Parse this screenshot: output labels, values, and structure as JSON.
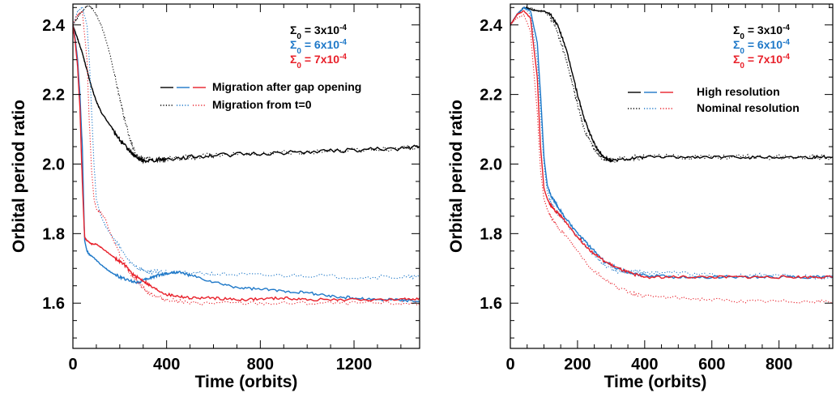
{
  "colors": {
    "black": "#000000",
    "blue": "#1e78c8",
    "red": "#e8202a"
  },
  "chart_data": [
    {
      "type": "line",
      "xlabel": "Time (orbits)",
      "ylabel": "Orbital period ratio",
      "xlim": [
        0,
        1480
      ],
      "ylim": [
        1.47,
        2.46
      ],
      "xticks": [
        0,
        400,
        800,
        1200
      ],
      "xtick_labels": [
        "0",
        "400",
        "800",
        "1200"
      ],
      "yticks": [
        1.6,
        1.8,
        2.0,
        2.2,
        2.4
      ],
      "ytick_labels": [
        "1.6",
        "1.8",
        "2.0",
        "2.2",
        "2.4"
      ],
      "grid": false,
      "legend_placement": "top-right",
      "sigma_legend": [
        {
          "label": "Σ0 = 3x10-4",
          "pre": "Σ",
          "sub": "0",
          "mid": " = 3x10",
          "sup": "-4",
          "color": "#000000"
        },
        {
          "label": "Σ0 = 6x10-4",
          "pre": "Σ",
          "sub": "0",
          "mid": " = 6x10",
          "sup": "-4",
          "color": "#1e78c8"
        },
        {
          "label": "Σ0 = 7x10-4",
          "pre": "Σ",
          "sub": "0",
          "mid": " = 7x10",
          "sup": "-4",
          "color": "#e8202a"
        }
      ],
      "style_legend": [
        {
          "label": "Migration after gap opening",
          "dash": "solid"
        },
        {
          "label": "Migration from t=0",
          "dash": "dotted"
        }
      ],
      "series": [
        {
          "color": "#000000",
          "dash": "solid",
          "noise": 0.006,
          "x": [
            0,
            20,
            40,
            60,
            80,
            100,
            120,
            150,
            180,
            210,
            240,
            260,
            280,
            300,
            350,
            400,
            500,
            600,
            800,
            1000,
            1200,
            1400,
            1480
          ],
          "y": [
            2.4,
            2.36,
            2.32,
            2.27,
            2.22,
            2.18,
            2.15,
            2.12,
            2.09,
            2.06,
            2.04,
            2.025,
            2.015,
            2.01,
            2.012,
            2.015,
            2.02,
            2.025,
            2.03,
            2.035,
            2.04,
            2.045,
            2.05
          ]
        },
        {
          "color": "#000000",
          "dash": "dotted",
          "noise": 0.008,
          "x": [
            0,
            20,
            40,
            60,
            80,
            100,
            120,
            140,
            160,
            180,
            200,
            220,
            240,
            260,
            280,
            300,
            340,
            400,
            500,
            600,
            800,
            1000,
            1200,
            1400,
            1480
          ],
          "y": [
            2.4,
            2.42,
            2.44,
            2.455,
            2.45,
            2.43,
            2.4,
            2.36,
            2.31,
            2.25,
            2.19,
            2.13,
            2.08,
            2.04,
            2.02,
            2.015,
            2.012,
            2.015,
            2.02,
            2.025,
            2.03,
            2.035,
            2.04,
            2.045,
            2.05
          ]
        },
        {
          "color": "#1e78c8",
          "dash": "solid",
          "noise": 0.004,
          "x": [
            0,
            10,
            20,
            30,
            40,
            50,
            60,
            70,
            90,
            120,
            160,
            200,
            240,
            280,
            320,
            360,
            400,
            450,
            500,
            600,
            700,
            800,
            900,
            1000,
            1100,
            1200,
            1300,
            1400,
            1480
          ],
          "y": [
            2.4,
            2.36,
            2.3,
            2.2,
            2.05,
            1.78,
            1.75,
            1.74,
            1.73,
            1.71,
            1.69,
            1.675,
            1.665,
            1.66,
            1.67,
            1.68,
            1.685,
            1.69,
            1.68,
            1.66,
            1.645,
            1.64,
            1.635,
            1.63,
            1.62,
            1.615,
            1.61,
            1.61,
            1.605
          ]
        },
        {
          "color": "#1e78c8",
          "dash": "dotted",
          "noise": 0.006,
          "x": [
            0,
            20,
            40,
            60,
            70,
            80,
            90,
            100,
            120,
            140,
            160,
            200,
            240,
            280,
            320,
            360,
            400,
            500,
            600,
            800,
            1000,
            1200,
            1400,
            1480
          ],
          "y": [
            2.4,
            2.44,
            2.45,
            2.4,
            2.3,
            2.15,
            2.0,
            1.9,
            1.85,
            1.82,
            1.8,
            1.76,
            1.72,
            1.7,
            1.69,
            1.69,
            1.69,
            1.685,
            1.685,
            1.68,
            1.68,
            1.675,
            1.675,
            1.675
          ]
        },
        {
          "color": "#e8202a",
          "dash": "solid",
          "noise": 0.004,
          "x": [
            0,
            10,
            20,
            30,
            40,
            50,
            60,
            80,
            100,
            140,
            180,
            220,
            260,
            300,
            340,
            400,
            450,
            500,
            600,
            700,
            800,
            900,
            1000,
            1200,
            1400,
            1480
          ],
          "y": [
            2.4,
            2.35,
            2.28,
            2.16,
            1.95,
            1.79,
            1.78,
            1.77,
            1.77,
            1.75,
            1.73,
            1.71,
            1.68,
            1.665,
            1.645,
            1.625,
            1.62,
            1.615,
            1.615,
            1.61,
            1.612,
            1.615,
            1.61,
            1.61,
            1.61,
            1.615
          ]
        },
        {
          "color": "#e8202a",
          "dash": "dotted",
          "noise": 0.006,
          "x": [
            0,
            20,
            40,
            60,
            70,
            80,
            90,
            100,
            120,
            140,
            160,
            200,
            240,
            280,
            320,
            360,
            400,
            500,
            600,
            800,
            1000,
            1200,
            1400,
            1480
          ],
          "y": [
            2.4,
            2.43,
            2.44,
            2.3,
            2.12,
            1.98,
            1.9,
            1.87,
            1.86,
            1.84,
            1.8,
            1.74,
            1.69,
            1.66,
            1.63,
            1.62,
            1.61,
            1.6,
            1.6,
            1.6,
            1.6,
            1.6,
            1.6,
            1.6
          ]
        }
      ]
    },
    {
      "type": "line",
      "xlabel": "Time (orbits)",
      "ylabel": "Orbital period ratio",
      "xlim": [
        0,
        960
      ],
      "ylim": [
        1.47,
        2.46
      ],
      "xticks": [
        0,
        200,
        400,
        600,
        800
      ],
      "xtick_labels": [
        "0",
        "200",
        "400",
        "600",
        "800"
      ],
      "yticks": [
        1.6,
        1.8,
        2.0,
        2.2,
        2.4
      ],
      "ytick_labels": [
        "1.6",
        "1.8",
        "2.0",
        "2.2",
        "2.4"
      ],
      "grid": false,
      "legend_placement": "top-right",
      "sigma_legend": [
        {
          "label": "Σ0 = 3x10-4",
          "pre": "Σ",
          "sub": "0",
          "mid": " = 3x10",
          "sup": "-4",
          "color": "#000000"
        },
        {
          "label": "Σ0 = 6x10-4",
          "pre": "Σ",
          "sub": "0",
          "mid": " = 6x10",
          "sup": "-4",
          "color": "#1e78c8"
        },
        {
          "label": "Σ0 = 7x10-4",
          "pre": "Σ",
          "sub": "0",
          "mid": " = 7x10",
          "sup": "-4",
          "color": "#e8202a"
        }
      ],
      "style_legend": [
        {
          "label": "High resolution",
          "dash": "solid"
        },
        {
          "label": "Nominal resolution",
          "dash": "dotted"
        }
      ],
      "series": [
        {
          "color": "#000000",
          "dash": "solid",
          "noise": 0.004,
          "x": [
            0,
            20,
            40,
            60,
            80,
            100,
            120,
            140,
            160,
            180,
            200,
            220,
            240,
            260,
            280,
            300,
            350,
            400,
            500,
            600,
            700,
            800,
            900,
            960
          ],
          "y": [
            2.4,
            2.43,
            2.45,
            2.445,
            2.44,
            2.44,
            2.43,
            2.4,
            2.35,
            2.28,
            2.2,
            2.13,
            2.08,
            2.04,
            2.02,
            2.01,
            2.015,
            2.02,
            2.02,
            2.02,
            2.02,
            2.02,
            2.02,
            2.02
          ]
        },
        {
          "color": "#000000",
          "dash": "dotted",
          "noise": 0.008,
          "x": [
            0,
            20,
            40,
            60,
            80,
            100,
            120,
            140,
            160,
            180,
            200,
            220,
            240,
            260,
            280,
            300,
            350,
            400,
            500,
            600,
            700,
            800,
            900,
            960
          ],
          "y": [
            2.4,
            2.43,
            2.45,
            2.45,
            2.44,
            2.44,
            2.42,
            2.38,
            2.32,
            2.25,
            2.17,
            2.1,
            2.06,
            2.03,
            2.015,
            2.01,
            2.015,
            2.02,
            2.02,
            2.02,
            2.02,
            2.02,
            2.02,
            2.02
          ]
        },
        {
          "color": "#1e78c8",
          "dash": "solid",
          "noise": 0.004,
          "x": [
            0,
            20,
            40,
            60,
            80,
            90,
            100,
            110,
            120,
            140,
            160,
            200,
            240,
            280,
            320,
            360,
            400,
            500,
            600,
            700,
            800,
            900,
            960
          ],
          "y": [
            2.4,
            2.43,
            2.45,
            2.44,
            2.35,
            2.2,
            2.02,
            1.94,
            1.91,
            1.88,
            1.85,
            1.8,
            1.76,
            1.72,
            1.7,
            1.685,
            1.68,
            1.675,
            1.675,
            1.675,
            1.675,
            1.675,
            1.675
          ]
        },
        {
          "color": "#1e78c8",
          "dash": "dotted",
          "noise": 0.006,
          "x": [
            0,
            20,
            40,
            60,
            80,
            90,
            100,
            110,
            120,
            140,
            160,
            200,
            240,
            280,
            320,
            360,
            400,
            500,
            600,
            700,
            800,
            900,
            960
          ],
          "y": [
            2.4,
            2.43,
            2.45,
            2.43,
            2.3,
            2.15,
            2.0,
            1.92,
            1.89,
            1.86,
            1.84,
            1.79,
            1.75,
            1.71,
            1.69,
            1.69,
            1.69,
            1.685,
            1.68,
            1.68,
            1.68,
            1.675,
            1.675
          ]
        },
        {
          "color": "#e8202a",
          "dash": "solid",
          "noise": 0.004,
          "x": [
            0,
            20,
            40,
            60,
            80,
            90,
            100,
            110,
            120,
            140,
            160,
            200,
            240,
            280,
            320,
            360,
            400,
            500,
            600,
            700,
            800,
            900,
            960
          ],
          "y": [
            2.4,
            2.43,
            2.44,
            2.42,
            2.25,
            2.05,
            1.93,
            1.9,
            1.88,
            1.86,
            1.84,
            1.79,
            1.75,
            1.72,
            1.7,
            1.685,
            1.675,
            1.675,
            1.675,
            1.675,
            1.675,
            1.675,
            1.675
          ]
        },
        {
          "color": "#e8202a",
          "dash": "dotted",
          "noise": 0.005,
          "x": [
            0,
            20,
            40,
            60,
            80,
            90,
            100,
            110,
            120,
            140,
            160,
            200,
            240,
            280,
            320,
            360,
            400,
            500,
            600,
            700,
            800,
            900,
            960
          ],
          "y": [
            2.4,
            2.42,
            2.43,
            2.38,
            2.15,
            1.98,
            1.9,
            1.87,
            1.85,
            1.82,
            1.8,
            1.75,
            1.7,
            1.67,
            1.645,
            1.63,
            1.62,
            1.615,
            1.61,
            1.605,
            1.605,
            1.605,
            1.605
          ]
        }
      ]
    }
  ]
}
